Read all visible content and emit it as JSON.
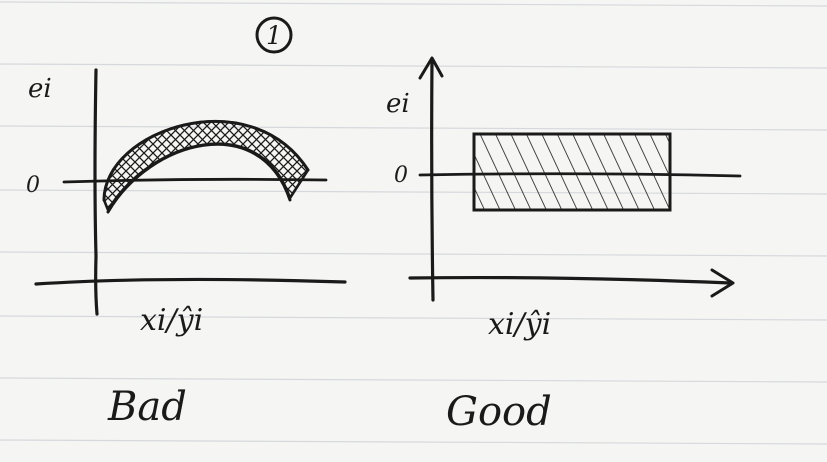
{
  "figure_number": "1",
  "panels": [
    {
      "id": "bad",
      "y_axis_label": "ei",
      "zero_label": "0",
      "x_axis_label": "xi/ŷi",
      "caption": "Bad",
      "shape": "curved-band"
    },
    {
      "id": "good",
      "y_axis_label": "ei",
      "zero_label": "0",
      "x_axis_label": "xi/ŷi",
      "caption": "Good",
      "shape": "horizontal-band"
    }
  ],
  "colors": {
    "paper": "#f5f5f3",
    "rule_line": "#d5d8dc",
    "ink": "#1a1a1a"
  }
}
